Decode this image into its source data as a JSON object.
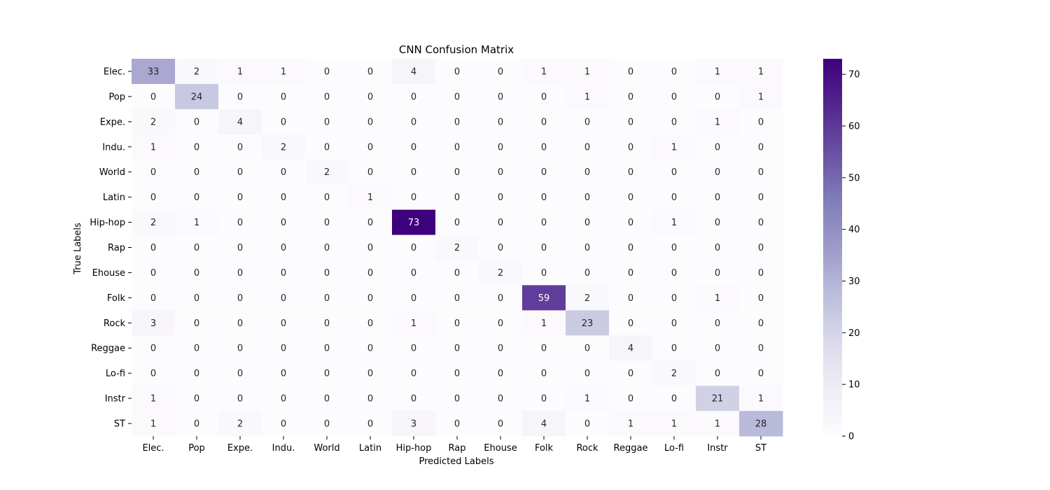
{
  "chart_data": {
    "type": "heatmap",
    "title": "CNN Confusion Matrix",
    "xlabel": "Predicted Labels",
    "ylabel": "True Labels",
    "x_labels": [
      "Elec.",
      "Pop",
      "Expe.",
      "Indu.",
      "World",
      "Latin",
      "Hip-hop",
      "Rap",
      "Ehouse",
      "Folk",
      "Rock",
      "Reggae",
      "Lo-fi",
      "Instr",
      "ST"
    ],
    "y_labels": [
      "Elec.",
      "Pop",
      "Expe.",
      "Indu.",
      "World",
      "Latin",
      "Hip-hop",
      "Rap",
      "Ehouse",
      "Folk",
      "Rock",
      "Reggae",
      "Lo-fi",
      "Instr",
      "ST"
    ],
    "values": [
      [
        33,
        2,
        1,
        1,
        0,
        0,
        4,
        0,
        0,
        1,
        1,
        0,
        0,
        1,
        1
      ],
      [
        0,
        24,
        0,
        0,
        0,
        0,
        0,
        0,
        0,
        0,
        1,
        0,
        0,
        0,
        1
      ],
      [
        2,
        0,
        4,
        0,
        0,
        0,
        0,
        0,
        0,
        0,
        0,
        0,
        0,
        1,
        0
      ],
      [
        1,
        0,
        0,
        2,
        0,
        0,
        0,
        0,
        0,
        0,
        0,
        0,
        1,
        0,
        0
      ],
      [
        0,
        0,
        0,
        0,
        2,
        0,
        0,
        0,
        0,
        0,
        0,
        0,
        0,
        0,
        0
      ],
      [
        0,
        0,
        0,
        0,
        0,
        1,
        0,
        0,
        0,
        0,
        0,
        0,
        0,
        0,
        0
      ],
      [
        2,
        1,
        0,
        0,
        0,
        0,
        73,
        0,
        0,
        0,
        0,
        0,
        1,
        0,
        0
      ],
      [
        0,
        0,
        0,
        0,
        0,
        0,
        0,
        2,
        0,
        0,
        0,
        0,
        0,
        0,
        0
      ],
      [
        0,
        0,
        0,
        0,
        0,
        0,
        0,
        0,
        2,
        0,
        0,
        0,
        0,
        0,
        0
      ],
      [
        0,
        0,
        0,
        0,
        0,
        0,
        0,
        0,
        0,
        59,
        2,
        0,
        0,
        1,
        0
      ],
      [
        3,
        0,
        0,
        0,
        0,
        0,
        1,
        0,
        0,
        1,
        23,
        0,
        0,
        0,
        0
      ],
      [
        0,
        0,
        0,
        0,
        0,
        0,
        0,
        0,
        0,
        0,
        0,
        4,
        0,
        0,
        0
      ],
      [
        0,
        0,
        0,
        0,
        0,
        0,
        0,
        0,
        0,
        0,
        0,
        0,
        2,
        0,
        0
      ],
      [
        1,
        0,
        0,
        0,
        0,
        0,
        0,
        0,
        0,
        0,
        1,
        0,
        0,
        21,
        1
      ],
      [
        1,
        0,
        2,
        0,
        0,
        0,
        3,
        0,
        0,
        4,
        0,
        1,
        1,
        1,
        28
      ]
    ],
    "vmin": 0,
    "vmax": 73,
    "colormap": "Purples",
    "colormap_stops": [
      "#fcfbfd",
      "#efedf5",
      "#dadaeb",
      "#bcbddc",
      "#9e9ac8",
      "#807dba",
      "#6a51a3",
      "#54278f",
      "#3f007d"
    ],
    "colorbar_ticks": [
      0,
      10,
      20,
      30,
      40,
      50,
      60,
      70
    ],
    "grid": false,
    "legend": "colorbar-right"
  }
}
